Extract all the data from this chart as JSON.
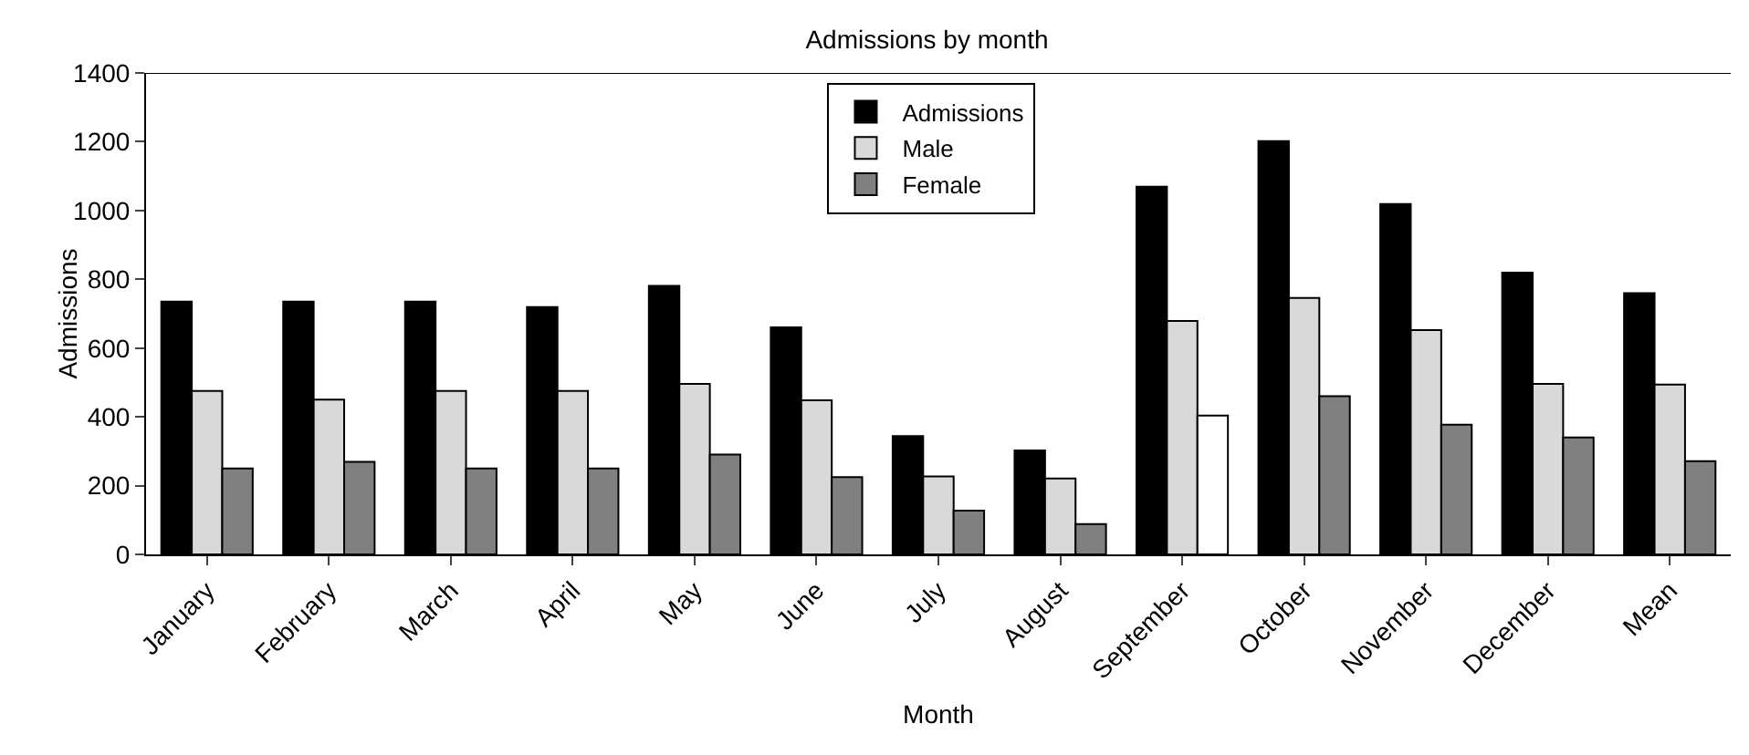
{
  "chart_data": {
    "type": "bar",
    "title": "Admissions by month",
    "xlabel": "Month",
    "ylabel": "Admissions",
    "categories": [
      "January",
      "February",
      "March",
      "April",
      "May",
      "June",
      "July",
      "August",
      "September",
      "October",
      "November",
      "December",
      "Mean"
    ],
    "series": [
      {
        "name": "Admissions",
        "color": "#000000",
        "values": [
          735,
          735,
          735,
          719,
          781,
          660,
          344,
          302,
          1069,
          1202,
          1019,
          819,
          760
        ]
      },
      {
        "name": "Male",
        "color": "#d9d9d9",
        "values": [
          475,
          450,
          475,
          475,
          496,
          448,
          227,
          221,
          679,
          746,
          652,
          496,
          494
        ]
      },
      {
        "name": "Female",
        "color": "#808080",
        "colors": [
          null,
          null,
          null,
          null,
          null,
          null,
          null,
          null,
          "#ffffff",
          null,
          null,
          null,
          null
        ],
        "values": [
          250,
          269,
          250,
          250,
          290,
          225,
          127,
          88,
          404,
          460,
          377,
          340,
          271
        ]
      }
    ],
    "ylim": [
      0,
      1400
    ],
    "yticks": [
      0,
      200,
      400,
      600,
      800,
      1000,
      1200,
      1400
    ],
    "grid": false,
    "legend": "top"
  }
}
